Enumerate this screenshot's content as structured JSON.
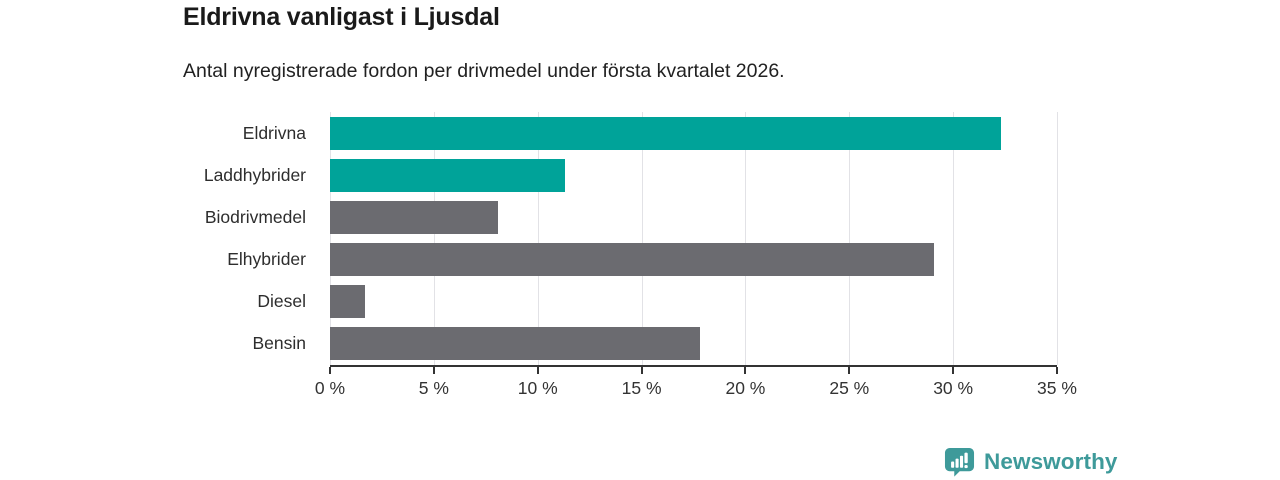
{
  "header": {
    "title": "Eldrivna vanligast i Ljusdal",
    "subtitle": "Antal nyregistrerade fordon per drivmedel under första kvartalet 2026."
  },
  "chart_data": {
    "type": "bar",
    "orientation": "horizontal",
    "title": "Eldrivna vanligast i Ljusdal",
    "xlabel": "",
    "ylabel": "",
    "categories": [
      "Eldrivna",
      "Laddhybrider",
      "Biodrivmedel",
      "Elhybrider",
      "Diesel",
      "Bensin"
    ],
    "values": [
      32.3,
      11.3,
      8.1,
      29.1,
      1.7,
      17.8
    ],
    "unit": "%",
    "bar_colors": [
      "#00a399",
      "#00a399",
      "#6b6b70",
      "#6b6b70",
      "#6b6b70",
      "#6b6b70"
    ],
    "highlight_color": "#00a399",
    "default_color": "#6b6b70",
    "xlim": [
      0,
      35
    ],
    "x_ticks": [
      0,
      5,
      10,
      15,
      20,
      25,
      30,
      35
    ],
    "x_tick_suffix": " %",
    "grid": true,
    "legend": false
  },
  "footer": {
    "brand": "Newsworthy",
    "brand_color": "#3e9a9a",
    "logo_icon": "bar-chart-speech-bubble-icon"
  }
}
